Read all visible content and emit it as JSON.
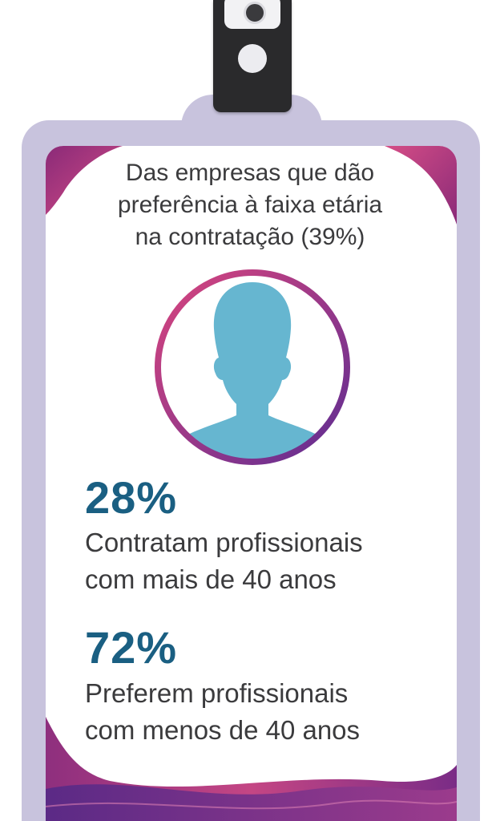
{
  "title": {
    "line1": "Das empresas que dão",
    "line2": "preferência à faixa etária",
    "line3": "na contratação (39%)"
  },
  "stats": [
    {
      "value": "28%",
      "line1": "Contratam profissionais",
      "line2": "com mais de 40 anos"
    },
    {
      "value": "72%",
      "line1": "Preferem profissionais",
      "line2": "com menos de 40 anos"
    }
  ],
  "colors": {
    "value_blue": "#1a5f82",
    "text_gray": "#3b3b3d",
    "avatar_blue": "#66b6d0",
    "ring_pink": "#c9417f",
    "ring_purple": "#6a2f8f",
    "badge_lilac": "#c8c3dd"
  },
  "icons": {
    "avatar": "person-silhouette-icon",
    "clip": "badge-clip-icon"
  }
}
